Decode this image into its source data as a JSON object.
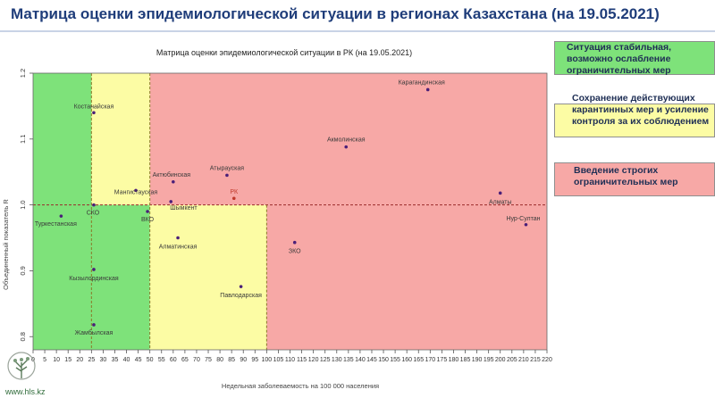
{
  "header": {
    "title": "Матрица оценки эпидемиологической ситуации в регионах Казахстана (на 19.05.2021)"
  },
  "legend": {
    "items": [
      {
        "label": "Ситуация стабильная, возможно ослабление ограничительных мер",
        "color": "#7ee27a"
      },
      {
        "label": "Сохранение действующих карантинных мер и усиление контроля за их соблюдением",
        "color": "#fcfca4"
      },
      {
        "label": "Введение строгих ограничительных мер",
        "color": "#f7a8a6"
      }
    ]
  },
  "footer": {
    "site": "www.hls.kz"
  },
  "chart_data": {
    "type": "scatter",
    "title": "Матрица оценки эпидемиологической ситуации в РК (на 19.05.2021)",
    "xlabel": "Недельная заболеваемость на 100 000 населения",
    "ylabel": "Объединенный показатель R",
    "xlim": [
      0,
      220
    ],
    "ylim": [
      0.78,
      1.2
    ],
    "xticks": [
      0,
      5,
      10,
      15,
      20,
      25,
      30,
      35,
      40,
      45,
      50,
      55,
      60,
      65,
      70,
      75,
      80,
      85,
      90,
      95,
      100,
      105,
      110,
      115,
      120,
      125,
      130,
      135,
      140,
      145,
      150,
      155,
      160,
      165,
      170,
      175,
      180,
      185,
      190,
      195,
      200,
      205,
      210,
      215,
      220
    ],
    "yticks": [
      0.8,
      0.9,
      1.0,
      1.1,
      1.2
    ],
    "ytick_labels": [
      "0.8",
      "0.9",
      "1.0",
      "1.1",
      "1.2"
    ],
    "zones": [
      {
        "x": [
          0,
          50
        ],
        "y": [
          0.78,
          1.2
        ],
        "color": "#7ee27a"
      },
      {
        "x": [
          25,
          50
        ],
        "y": [
          1.0,
          1.2
        ],
        "color": "#fcfca4"
      },
      {
        "x": [
          50,
          100
        ],
        "y": [
          0.78,
          1.0
        ],
        "color": "#fcfca4"
      },
      {
        "x": [
          50,
          220
        ],
        "y": [
          1.0,
          1.2
        ],
        "color": "#f7a8a6"
      },
      {
        "x": [
          100,
          220
        ],
        "y": [
          0.78,
          1.0
        ],
        "color": "#f7a8a6"
      }
    ],
    "reference_lines": [
      {
        "axis": "y",
        "value": 1.0
      },
      {
        "axis": "x",
        "value": 25
      },
      {
        "axis": "x",
        "value": 50
      },
      {
        "axis": "x",
        "value": 100
      }
    ],
    "points": [
      {
        "label": "Костанайская",
        "x": 26,
        "y": 1.14
      },
      {
        "label": "СКО",
        "x": 26,
        "y": 1.0
      },
      {
        "label": "Туркестанская",
        "x": 12,
        "y": 0.983
      },
      {
        "label": "Кызылординская",
        "x": 26,
        "y": 0.902
      },
      {
        "label": "Жамбылская",
        "x": 26,
        "y": 0.818
      },
      {
        "label": "Мангистауская",
        "x": 44,
        "y": 1.022
      },
      {
        "label": "ВКО",
        "x": 49,
        "y": 0.99
      },
      {
        "label": "Шымкент",
        "x": 59,
        "y": 1.005
      },
      {
        "label": "Актюбинская",
        "x": 60,
        "y": 1.035
      },
      {
        "label": "Алматинская",
        "x": 62,
        "y": 0.95
      },
      {
        "label": "Атырауская",
        "x": 83,
        "y": 1.045
      },
      {
        "label": "РК",
        "x": 86,
        "y": 1.01
      },
      {
        "label": "Павлодарская",
        "x": 89,
        "y": 0.876
      },
      {
        "label": "ЗКО",
        "x": 112,
        "y": 0.943
      },
      {
        "label": "Акмолинская",
        "x": 134,
        "y": 1.088
      },
      {
        "label": "Карагандинская",
        "x": 169,
        "y": 1.175
      },
      {
        "label": "Алматы",
        "x": 200,
        "y": 1.018
      },
      {
        "label": "Нур-Султан",
        "x": 211,
        "y": 0.97
      }
    ]
  }
}
